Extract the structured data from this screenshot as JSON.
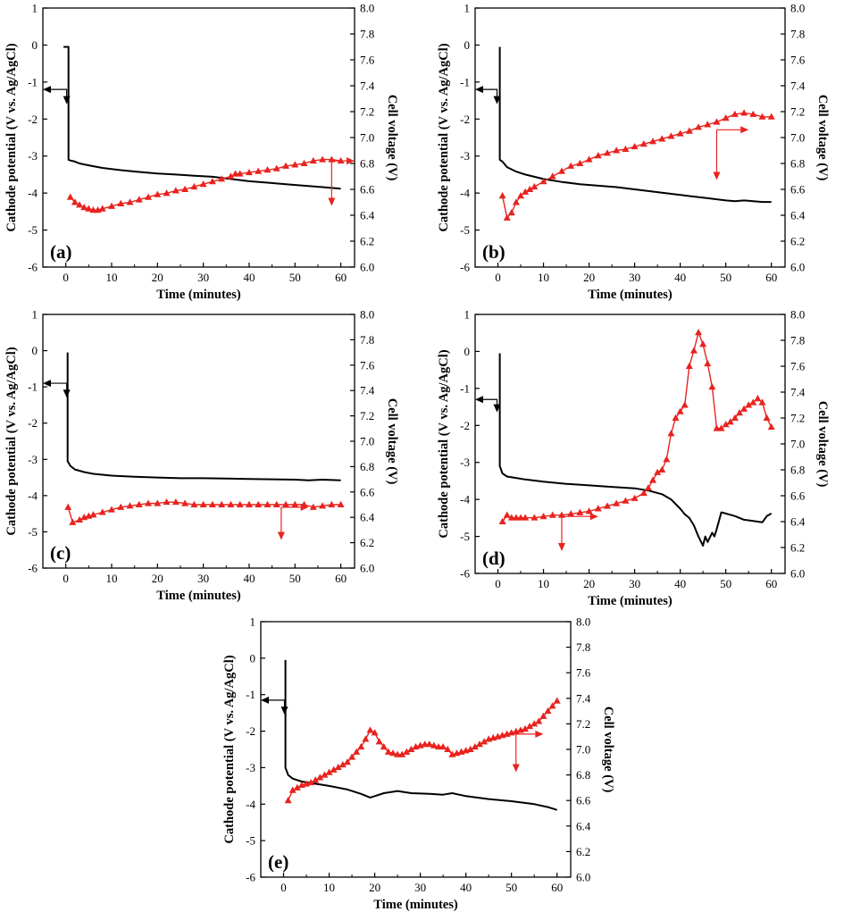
{
  "chart_data": [
    {
      "type": "line",
      "panel_label": "(a)",
      "xlabel": "Time (minutes)",
      "ylabel_left": "Cathode potential (V vs. Ag/AgCl)",
      "ylabel_right": "Cell voltage (V)",
      "xlim": [
        -5,
        63
      ],
      "xticks": [
        0,
        10,
        20,
        30,
        40,
        50,
        60
      ],
      "ylim_left": [
        -6,
        1
      ],
      "yticks_left": [
        -6,
        -5,
        -4,
        -3,
        -2,
        -1,
        0,
        1
      ],
      "ylim_right": [
        6.0,
        8.0
      ],
      "yticks_right": [
        "6.0",
        "6.2",
        "6.4",
        "6.6",
        "6.8",
        "7.0",
        "7.2",
        "7.4",
        "7.6",
        "7.8",
        "8.0"
      ],
      "grid": false,
      "colors": {
        "cathode": "#000000",
        "cell": "#e8231f"
      },
      "series": [
        {
          "axis": "left",
          "marker": "none",
          "x": [
            -0.5,
            0.6,
            0.6,
            1,
            2,
            3,
            5,
            8,
            12,
            16,
            20,
            24,
            28,
            32,
            36,
            40,
            44,
            48,
            52,
            56,
            60
          ],
          "y": [
            -0.05,
            -0.05,
            -3.1,
            -3.12,
            -3.15,
            -3.2,
            -3.25,
            -3.32,
            -3.38,
            -3.43,
            -3.47,
            -3.5,
            -3.53,
            -3.56,
            -3.62,
            -3.68,
            -3.72,
            -3.76,
            -3.8,
            -3.84,
            -3.88
          ]
        },
        {
          "axis": "right",
          "marker": "triangle",
          "x": [
            1,
            2,
            3,
            4,
            5,
            6,
            7,
            8,
            10,
            12,
            14,
            16,
            18,
            20,
            22,
            24,
            26,
            28,
            30,
            32,
            34,
            36,
            37,
            38,
            40,
            42,
            44,
            46,
            48,
            50,
            52,
            54,
            56,
            58,
            60
          ],
          "y": [
            6.54,
            6.5,
            6.48,
            6.46,
            6.45,
            6.44,
            6.44,
            6.45,
            6.47,
            6.49,
            6.5,
            6.52,
            6.54,
            6.56,
            6.57,
            6.59,
            6.6,
            6.62,
            6.64,
            6.66,
            6.68,
            6.7,
            6.72,
            6.72,
            6.73,
            6.74,
            6.75,
            6.76,
            6.78,
            6.79,
            6.8,
            6.82,
            6.83,
            6.83,
            6.82
          ]
        }
      ]
    },
    {
      "type": "line",
      "panel_label": "(b)",
      "xlabel": "Time (minutes)",
      "ylabel_left": "Cathode potential (V vs. Ag/AgCl)",
      "ylabel_right": "Cell voltage (V)",
      "xlim": [
        -5,
        63
      ],
      "xticks": [
        0,
        10,
        20,
        30,
        40,
        50,
        60
      ],
      "ylim_left": [
        -6,
        1
      ],
      "yticks_left": [
        -6,
        -5,
        -4,
        -3,
        -2,
        -1,
        0,
        1
      ],
      "ylim_right": [
        6.0,
        8.0
      ],
      "yticks_right": [
        "6.0",
        "6.2",
        "6.4",
        "6.6",
        "6.8",
        "7.0",
        "7.2",
        "7.4",
        "7.6",
        "7.8",
        "8.0"
      ],
      "grid": false,
      "colors": {
        "cathode": "#000000",
        "cell": "#e8231f"
      },
      "series": [
        {
          "axis": "left",
          "marker": "none",
          "x": [
            0.4,
            0.4,
            1,
            2,
            4,
            6,
            8,
            10,
            14,
            18,
            22,
            26,
            30,
            34,
            38,
            42,
            46,
            50,
            52,
            54,
            56,
            58,
            60
          ],
          "y": [
            -0.05,
            -3.1,
            -3.15,
            -3.3,
            -3.42,
            -3.5,
            -3.56,
            -3.62,
            -3.7,
            -3.76,
            -3.8,
            -3.84,
            -3.9,
            -3.96,
            -4.02,
            -4.08,
            -4.14,
            -4.2,
            -4.22,
            -4.2,
            -4.22,
            -4.24,
            -4.24
          ]
        },
        {
          "axis": "right",
          "marker": "triangle",
          "x": [
            1,
            2,
            3,
            4,
            5,
            6,
            7,
            8,
            10,
            12,
            14,
            16,
            18,
            20,
            22,
            24,
            26,
            28,
            30,
            32,
            34,
            36,
            38,
            40,
            42,
            44,
            46,
            48,
            50,
            52,
            54,
            56,
            58,
            60
          ],
          "y": [
            6.55,
            6.38,
            6.42,
            6.5,
            6.55,
            6.58,
            6.6,
            6.62,
            6.66,
            6.7,
            6.74,
            6.78,
            6.8,
            6.83,
            6.86,
            6.88,
            6.9,
            6.91,
            6.93,
            6.95,
            6.97,
            6.99,
            7.01,
            7.03,
            7.05,
            7.08,
            7.1,
            7.12,
            7.15,
            7.18,
            7.19,
            7.18,
            7.16,
            7.16
          ]
        }
      ]
    },
    {
      "type": "line",
      "panel_label": "(c)",
      "xlabel": "Time (minutes)",
      "ylabel_left": "Cathode potential (V vs. Ag/AgCl)",
      "ylabel_right": "Cell voltage (V)",
      "xlim": [
        -5,
        63
      ],
      "xticks": [
        0,
        10,
        20,
        30,
        40,
        50,
        60
      ],
      "ylim_left": [
        -6,
        1
      ],
      "yticks_left": [
        -6,
        -5,
        -4,
        -3,
        -2,
        -1,
        0,
        1
      ],
      "ylim_right": [
        6.0,
        8.0
      ],
      "yticks_right": [
        "6.0",
        "6.2",
        "6.4",
        "6.6",
        "6.8",
        "7.0",
        "7.2",
        "7.4",
        "7.6",
        "7.8",
        "8.0"
      ],
      "grid": false,
      "colors": {
        "cathode": "#000000",
        "cell": "#e8231f"
      },
      "series": [
        {
          "axis": "left",
          "marker": "none",
          "x": [
            0.4,
            0.4,
            1,
            2,
            4,
            6,
            10,
            15,
            20,
            25,
            30,
            35,
            40,
            45,
            50,
            53,
            56,
            60
          ],
          "y": [
            -0.05,
            -3.05,
            -3.18,
            -3.28,
            -3.35,
            -3.4,
            -3.45,
            -3.48,
            -3.5,
            -3.52,
            -3.52,
            -3.53,
            -3.54,
            -3.55,
            -3.56,
            -3.58,
            -3.56,
            -3.58
          ]
        },
        {
          "axis": "right",
          "marker": "triangle",
          "x": [
            0.5,
            1.5,
            3,
            4,
            5,
            6,
            8,
            10,
            12,
            14,
            16,
            18,
            20,
            22,
            24,
            26,
            28,
            30,
            32,
            34,
            36,
            38,
            40,
            42,
            44,
            46,
            48,
            50,
            52,
            54,
            56,
            58,
            60
          ],
          "y": [
            6.48,
            6.36,
            6.38,
            6.4,
            6.41,
            6.42,
            6.44,
            6.46,
            6.48,
            6.49,
            6.5,
            6.51,
            6.51,
            6.52,
            6.52,
            6.51,
            6.5,
            6.5,
            6.5,
            6.5,
            6.5,
            6.5,
            6.5,
            6.5,
            6.5,
            6.5,
            6.5,
            6.5,
            6.5,
            6.48,
            6.49,
            6.5,
            6.5
          ]
        }
      ]
    },
    {
      "type": "line",
      "panel_label": "(d)",
      "xlabel": "Time (minutes)",
      "ylabel_left": "Cathode potential (V vs. Ag/AgCl)",
      "ylabel_right": "Cell voltage (V)",
      "xlim": [
        -5,
        63
      ],
      "xticks": [
        0,
        10,
        20,
        30,
        40,
        50,
        60
      ],
      "ylim_left": [
        -6,
        1
      ],
      "yticks_left": [
        -6,
        -5,
        -4,
        -3,
        -2,
        -1,
        0,
        1
      ],
      "ylim_right": [
        6.0,
        8.0
      ],
      "yticks_right": [
        "6.0",
        "6.2",
        "6.4",
        "6.6",
        "6.8",
        "7.0",
        "7.2",
        "7.4",
        "7.6",
        "7.8",
        "8.0"
      ],
      "grid": false,
      "colors": {
        "cathode": "#000000",
        "cell": "#e8231f"
      },
      "series": [
        {
          "axis": "left",
          "marker": "none",
          "x": [
            0.4,
            0.4,
            1,
            2,
            4,
            6,
            10,
            15,
            20,
            25,
            30,
            33,
            36,
            38,
            40,
            41,
            42,
            43,
            44,
            45,
            45.5,
            46,
            47,
            47.5,
            48,
            49,
            50,
            52,
            54,
            56,
            58,
            59,
            60
          ],
          "y": [
            -0.05,
            -3.1,
            -3.3,
            -3.38,
            -3.42,
            -3.46,
            -3.52,
            -3.58,
            -3.62,
            -3.66,
            -3.7,
            -3.76,
            -3.86,
            -4.0,
            -4.25,
            -4.4,
            -4.5,
            -4.7,
            -5.0,
            -5.25,
            -5.0,
            -5.15,
            -4.9,
            -5.0,
            -4.8,
            -4.35,
            -4.38,
            -4.45,
            -4.55,
            -4.58,
            -4.62,
            -4.45,
            -4.38
          ]
        },
        {
          "axis": "right",
          "marker": "triangle",
          "x": [
            1,
            2,
            3,
            4,
            5,
            6,
            8,
            10,
            12,
            14,
            16,
            18,
            20,
            22,
            24,
            26,
            28,
            30,
            32,
            33,
            34,
            35,
            36,
            37,
            38,
            39,
            40,
            41,
            42,
            43,
            44,
            45,
            46,
            47,
            48,
            49,
            50,
            51,
            52,
            53,
            54,
            55,
            56,
            57,
            58,
            59,
            60
          ],
          "y": [
            6.4,
            6.45,
            6.43,
            6.43,
            6.43,
            6.43,
            6.43,
            6.44,
            6.45,
            6.45,
            6.46,
            6.47,
            6.48,
            6.5,
            6.52,
            6.54,
            6.56,
            6.58,
            6.62,
            6.66,
            6.72,
            6.78,
            6.8,
            6.88,
            7.08,
            7.2,
            7.25,
            7.3,
            7.6,
            7.72,
            7.86,
            7.77,
            7.62,
            7.44,
            7.12,
            7.12,
            7.15,
            7.17,
            7.2,
            7.24,
            7.27,
            7.3,
            7.32,
            7.35,
            7.32,
            7.2,
            7.13
          ]
        }
      ]
    },
    {
      "type": "line",
      "panel_label": "(e)",
      "xlabel": "Time (minutes)",
      "ylabel_left": "Cathode potential (V vs. Ag/AgCl)",
      "ylabel_right": "Cell voltage (V)",
      "xlim": [
        -5,
        63
      ],
      "xticks": [
        0,
        10,
        20,
        30,
        40,
        50,
        60
      ],
      "ylim_left": [
        -6,
        1
      ],
      "yticks_left": [
        -6,
        -5,
        -4,
        -3,
        -2,
        -1,
        0,
        1
      ],
      "ylim_right": [
        6.0,
        8.0
      ],
      "yticks_right": [
        "6.0",
        "6.2",
        "6.4",
        "6.6",
        "6.8",
        "7.0",
        "7.2",
        "7.4",
        "7.6",
        "7.8",
        "8.0"
      ],
      "grid": false,
      "colors": {
        "cathode": "#000000",
        "cell": "#e8231f"
      },
      "series": [
        {
          "axis": "left",
          "marker": "none",
          "x": [
            0.4,
            0.4,
            1,
            2,
            4,
            6,
            10,
            14,
            17,
            19,
            20,
            22,
            25,
            28,
            32,
            35,
            37,
            40,
            45,
            50,
            55,
            58,
            60
          ],
          "y": [
            -0.05,
            -3.0,
            -3.2,
            -3.3,
            -3.38,
            -3.42,
            -3.5,
            -3.6,
            -3.72,
            -3.82,
            -3.78,
            -3.7,
            -3.64,
            -3.7,
            -3.72,
            -3.74,
            -3.7,
            -3.78,
            -3.86,
            -3.92,
            -4.0,
            -4.08,
            -4.16
          ]
        },
        {
          "axis": "right",
          "marker": "triangle",
          "x": [
            1,
            2,
            3,
            4,
            5,
            6,
            7,
            8,
            9,
            10,
            11,
            12,
            13,
            14,
            15,
            16,
            17,
            18,
            19,
            20,
            21,
            22,
            23,
            24,
            25,
            26,
            27,
            28,
            29,
            30,
            31,
            32,
            33,
            34,
            35,
            36,
            37,
            38,
            39,
            40,
            41,
            42,
            43,
            44,
            45,
            46,
            47,
            48,
            49,
            50,
            51,
            52,
            53,
            54,
            55,
            56,
            57,
            58,
            59,
            60
          ],
          "y": [
            6.6,
            6.68,
            6.7,
            6.72,
            6.73,
            6.74,
            6.76,
            6.78,
            6.8,
            6.82,
            6.84,
            6.86,
            6.88,
            6.9,
            6.94,
            6.98,
            7.02,
            7.08,
            7.15,
            7.13,
            7.06,
            7.02,
            6.98,
            6.97,
            6.96,
            6.96,
            6.98,
            7.0,
            7.02,
            7.03,
            7.04,
            7.04,
            7.03,
            7.02,
            7.02,
            7.0,
            6.96,
            6.97,
            6.98,
            6.99,
            7.0,
            7.02,
            7.04,
            7.06,
            7.08,
            7.09,
            7.1,
            7.11,
            7.12,
            7.13,
            7.14,
            7.15,
            7.16,
            7.18,
            7.2,
            7.22,
            7.26,
            7.3,
            7.34,
            7.38
          ]
        }
      ]
    }
  ]
}
